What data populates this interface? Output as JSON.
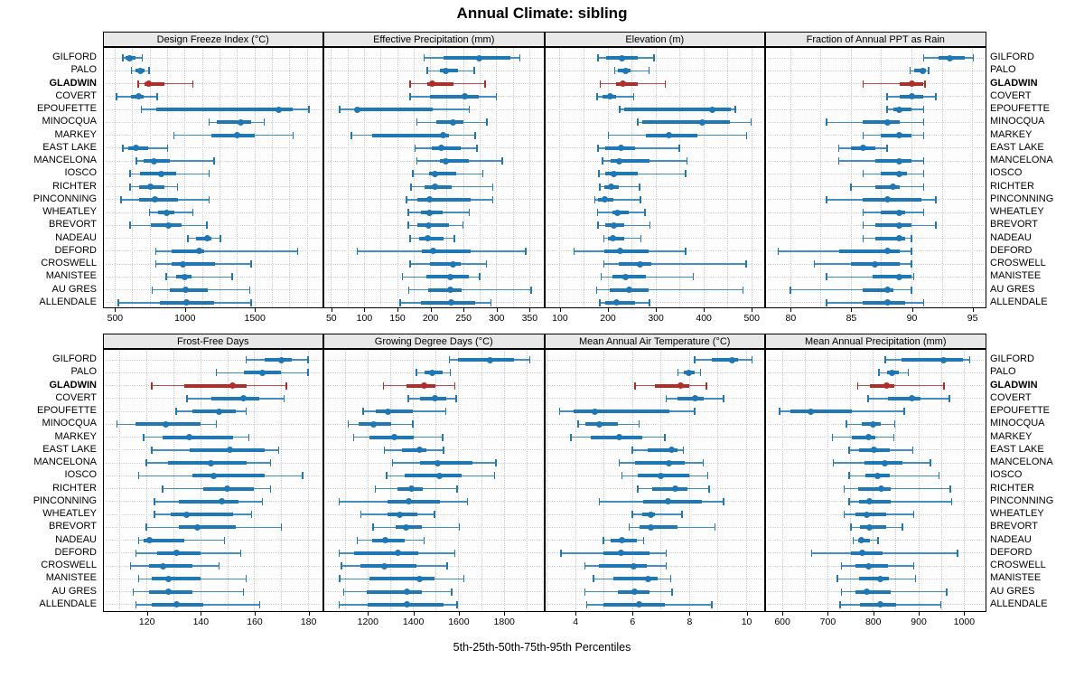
{
  "title": "Annual Climate: sibling",
  "caption": "5th-25th-50th-75th-95th Percentiles",
  "percentile_legend": [
    "5th",
    "25th",
    "50th",
    "75th",
    "95th"
  ],
  "highlight_site": "GLADWIN",
  "colors": {
    "series": "#1F77B4",
    "highlight": "#B22C28",
    "strip_bg": "#E8E8E8",
    "panel_border": "#000000",
    "grid": "#C8C8C8"
  },
  "sites": [
    "GILFORD",
    "PALO",
    "GLADWIN",
    "COVERT",
    "EPOUFETTE",
    "MINOCQUA",
    "MARKEY",
    "EAST LAKE",
    "MANCELONA",
    "IOSCO",
    "RICHTER",
    "PINCONNING",
    "WHEATLEY",
    "BREVORT",
    "NADEAU",
    "DEFORD",
    "CROSWELL",
    "MANISTEE",
    "AU GRES",
    "ALLENDALE"
  ],
  "chart_data": [
    {
      "type": "range-dotplot",
      "title": "Design Freeze Index (°C)",
      "row": 0,
      "col": 0,
      "xlim": [
        420,
        1980
      ],
      "ticks": [
        500,
        1000,
        1500
      ],
      "grid_step": 125,
      "values": [
        [
          558,
          575,
          605,
          650,
          697
        ],
        [
          620,
          650,
          685,
          715,
          745
        ],
        [
          670,
          715,
          745,
          855,
          1060
        ],
        [
          515,
          620,
          670,
          705,
          805
        ],
        [
          690,
          800,
          1670,
          1775,
          1890
        ],
        [
          1175,
          1230,
          1400,
          1475,
          1570
        ],
        [
          925,
          1195,
          1375,
          1500,
          1775
        ],
        [
          560,
          595,
          650,
          740,
          880
        ],
        [
          655,
          705,
          780,
          895,
          1210
        ],
        [
          610,
          680,
          835,
          940,
          1175
        ],
        [
          610,
          675,
          758,
          855,
          950
        ],
        [
          545,
          673,
          790,
          955,
          1175
        ],
        [
          748,
          808,
          870,
          930,
          1058
        ],
        [
          610,
          760,
          883,
          977,
          1160
        ],
        [
          1025,
          1080,
          1165,
          1190,
          1255
        ],
        [
          795,
          910,
          1105,
          1140,
          1810
        ],
        [
          795,
          905,
          990,
          1215,
          1475
        ],
        [
          870,
          940,
          1000,
          1050,
          1340
        ],
        [
          770,
          895,
          1005,
          1165,
          1465
        ],
        [
          525,
          825,
          1015,
          1210,
          1475
        ]
      ]
    },
    {
      "type": "range-dotplot",
      "title": "Effective Precipitation (mm)",
      "row": 0,
      "col": 1,
      "xlim": [
        40,
        370
      ],
      "ticks": [
        50,
        100,
        150,
        200,
        250,
        300,
        350
      ],
      "grid_step": 25,
      "values": [
        [
          191,
          221,
          275,
          321,
          336
        ],
        [
          196,
          215,
          224,
          242,
          267
        ],
        [
          170,
          196,
          203,
          235,
          283
        ],
        [
          170,
          200,
          253,
          274,
          300
        ],
        [
          63,
          86,
          90,
          204,
          259
        ],
        [
          180,
          210,
          235,
          250,
          286
        ],
        [
          81,
          112,
          220,
          229,
          268
        ],
        [
          177,
          203,
          217,
          246,
          271
        ],
        [
          180,
          215,
          224,
          258,
          309
        ],
        [
          174,
          199,
          208,
          240,
          280
        ],
        [
          171,
          191,
          207,
          233,
          295
        ],
        [
          164,
          181,
          199,
          262,
          295
        ],
        [
          167,
          186,
          199,
          219,
          259
        ],
        [
          167,
          181,
          198,
          228,
          250
        ],
        [
          170,
          183,
          197,
          221,
          237
        ],
        [
          90,
          188,
          204,
          262,
          345
        ],
        [
          170,
          200,
          235,
          247,
          285
        ],
        [
          158,
          195,
          231,
          258,
          275
        ],
        [
          168,
          197,
          230,
          248,
          353
        ],
        [
          155,
          186,
          232,
          268,
          292
        ]
      ]
    },
    {
      "type": "range-dotplot",
      "title": "Elevation (m)",
      "row": 0,
      "col": 2,
      "xlim": [
        70,
        525
      ],
      "ticks": [
        100,
        200,
        300,
        400,
        500
      ],
      "grid_step": 50,
      "values": [
        [
          180,
          198,
          230,
          263,
          297
        ],
        [
          215,
          222,
          238,
          248,
          287
        ],
        [
          185,
          218,
          232,
          263,
          321
        ],
        [
          178,
          190,
          205,
          218,
          255
        ],
        [
          225,
          235,
          418,
          457,
          467
        ],
        [
          263,
          273,
          397,
          455,
          500
        ],
        [
          202,
          280,
          329,
          388,
          490
        ],
        [
          180,
          196,
          229,
          258,
          350
        ],
        [
          190,
          207,
          224,
          288,
          366
        ],
        [
          182,
          196,
          213,
          264,
          363
        ],
        [
          184,
          193,
          207,
          224,
          267
        ],
        [
          174,
          180,
          195,
          213,
          269
        ],
        [
          179,
          210,
          221,
          245,
          278
        ],
        [
          180,
          196,
          213,
          235,
          289
        ],
        [
          192,
          201,
          211,
          235,
          270
        ],
        [
          130,
          193,
          226,
          286,
          363
        ],
        [
          192,
          224,
          267,
          292,
          489
        ],
        [
          187,
          211,
          238,
          280,
          379
        ],
        [
          177,
          204,
          245,
          286,
          483
        ],
        [
          184,
          196,
          218,
          258,
          288
        ]
      ]
    },
    {
      "type": "range-dotplot",
      "title": "Fraction of Annual PPT as Rain",
      "row": 0,
      "col": 3,
      "xlim": [
        78,
        96
      ],
      "ticks": [
        80,
        85,
        90,
        95
      ],
      "grid_step": 2.5,
      "values": [
        [
          91,
          92.2,
          93.2,
          94.4,
          95.1
        ],
        [
          89.9,
          90.2,
          90.9,
          91.2,
          91.4
        ],
        [
          86,
          89,
          90,
          91,
          91.1
        ],
        [
          88,
          89,
          90,
          91,
          92
        ],
        [
          88,
          88.5,
          89,
          90,
          91
        ],
        [
          83,
          86,
          88,
          89,
          91
        ],
        [
          86,
          87.5,
          89,
          90,
          91
        ],
        [
          84,
          85,
          86,
          87,
          88
        ],
        [
          84,
          87,
          89,
          90,
          91
        ],
        [
          86,
          87.5,
          89,
          89.6,
          91
        ],
        [
          85,
          87,
          88.5,
          89,
          91
        ],
        [
          83,
          86,
          88,
          90.8,
          92
        ],
        [
          86,
          87.5,
          89,
          89.5,
          91
        ],
        [
          86,
          87,
          89,
          90,
          92
        ],
        [
          86,
          87,
          89,
          89.5,
          90
        ],
        [
          79,
          84,
          88,
          89,
          90
        ],
        [
          82,
          85,
          87,
          89,
          90
        ],
        [
          83,
          86.8,
          89,
          90,
          90.2
        ],
        [
          80,
          86,
          88,
          88.5,
          90
        ],
        [
          83,
          86,
          88,
          89.5,
          91
        ]
      ]
    },
    {
      "type": "range-dotplot",
      "title": "Frost-Free Days",
      "row": 1,
      "col": 0,
      "xlim": [
        104,
        185
      ],
      "ticks": [
        120,
        140,
        160,
        180
      ],
      "grid_step": 10,
      "values": [
        [
          157,
          164,
          170,
          174,
          180
        ],
        [
          146,
          156,
          163,
          170,
          180
        ],
        [
          122,
          134,
          152,
          157,
          172
        ],
        [
          135,
          144,
          156,
          162,
          171
        ],
        [
          131,
          137,
          147,
          153,
          157
        ],
        [
          109,
          116,
          127,
          140,
          146
        ],
        [
          119,
          126,
          136,
          152,
          158
        ],
        [
          122,
          136,
          151,
          164,
          169
        ],
        [
          120,
          128,
          144,
          157,
          166
        ],
        [
          117,
          137,
          145,
          164,
          178
        ],
        [
          126,
          141,
          150,
          160,
          166
        ],
        [
          123,
          132,
          148,
          154,
          163
        ],
        [
          123,
          129,
          135,
          152,
          159
        ],
        [
          120,
          132,
          139,
          153,
          170
        ],
        [
          117,
          119,
          121,
          134,
          149
        ],
        [
          116,
          124,
          131,
          140,
          155
        ],
        [
          114,
          121,
          126,
          137,
          147
        ],
        [
          117,
          122,
          128,
          140,
          157
        ],
        [
          115,
          121,
          128,
          137,
          156
        ],
        [
          116,
          122,
          131,
          141,
          162
        ]
      ]
    },
    {
      "type": "range-dotplot",
      "title": "Growing Degree Days (°C)",
      "row": 1,
      "col": 1,
      "xlim": [
        1010,
        1970
      ],
      "ticks": [
        1200,
        1400,
        1600,
        1800
      ],
      "grid_step": 100,
      "values": [
        [
          1560,
          1600,
          1740,
          1845,
          1915
        ],
        [
          1415,
          1450,
          1485,
          1530,
          1565
        ],
        [
          1270,
          1370,
          1450,
          1500,
          1585
        ],
        [
          1380,
          1430,
          1495,
          1545,
          1590
        ],
        [
          1180,
          1235,
          1290,
          1400,
          1545
        ],
        [
          1115,
          1160,
          1225,
          1305,
          1400
        ],
        [
          1140,
          1210,
          1320,
          1405,
          1530
        ],
        [
          1275,
          1350,
          1430,
          1460,
          1535
        ],
        [
          1310,
          1430,
          1510,
          1660,
          1765
        ],
        [
          1285,
          1365,
          1515,
          1615,
          1760
        ],
        [
          1235,
          1330,
          1395,
          1445,
          1595
        ],
        [
          1075,
          1290,
          1380,
          1520,
          1640
        ],
        [
          1170,
          1290,
          1340,
          1420,
          1495
        ],
        [
          1225,
          1325,
          1370,
          1440,
          1605
        ],
        [
          1155,
          1220,
          1280,
          1365,
          1450
        ],
        [
          1075,
          1140,
          1335,
          1425,
          1585
        ],
        [
          1085,
          1170,
          1275,
          1415,
          1550
        ],
        [
          1077,
          1210,
          1430,
          1495,
          1625
        ],
        [
          1095,
          1195,
          1375,
          1440,
          1570
        ],
        [
          1075,
          1200,
          1375,
          1535,
          1595
        ]
      ]
    },
    {
      "type": "range-dotplot",
      "title": "Mean Annual Air Temperature (°C)",
      "row": 1,
      "col": 2,
      "xlim": [
        2.95,
        10.6
      ],
      "ticks": [
        4,
        6,
        8,
        10
      ],
      "grid_step": 1,
      "values": [
        [
          8.2,
          8.8,
          9.5,
          9.7,
          10.2
        ],
        [
          7.6,
          7.8,
          8.0,
          8.2,
          8.4
        ],
        [
          6.1,
          6.8,
          7.7,
          8.0,
          8.6
        ],
        [
          7.2,
          7.6,
          8.2,
          8.5,
          9.2
        ],
        [
          3.45,
          3.95,
          4.7,
          7.3,
          8.2
        ],
        [
          4.1,
          4.35,
          4.85,
          5.5,
          6.25
        ],
        [
          3.85,
          4.55,
          5.55,
          6.35,
          7.15
        ],
        [
          6.0,
          6.55,
          7.4,
          7.6,
          7.8
        ],
        [
          5.55,
          6.1,
          7.3,
          7.85,
          8.5
        ],
        [
          5.65,
          6.2,
          7.0,
          8.0,
          8.65
        ],
        [
          6.2,
          6.7,
          7.5,
          7.95,
          8.7
        ],
        [
          4.85,
          6.4,
          7.25,
          8.45,
          9.2
        ],
        [
          6.0,
          6.35,
          6.65,
          6.8,
          7.75
        ],
        [
          5.9,
          6.25,
          6.65,
          7.6,
          8.9
        ],
        [
          5.0,
          5.25,
          5.65,
          6.15,
          6.4
        ],
        [
          3.5,
          5.0,
          5.6,
          6.6,
          7.2
        ],
        [
          4.35,
          4.85,
          6.05,
          6.5,
          7.2
        ],
        [
          4.65,
          5.35,
          6.55,
          6.9,
          7.35
        ],
        [
          4.35,
          5.5,
          6.1,
          6.6,
          7.4
        ],
        [
          4.4,
          5.0,
          6.25,
          7.15,
          8.8
        ]
      ]
    },
    {
      "type": "range-dotplot",
      "title": "Mean Annual Precipitation (mm)",
      "row": 1,
      "col": 3,
      "xlim": [
        565,
        1045
      ],
      "ticks": [
        600,
        700,
        800,
        900,
        1000
      ],
      "grid_step": 50,
      "values": [
        [
          827,
          863,
          956,
          999,
          1013
        ],
        [
          813,
          831,
          842,
          857,
          878
        ],
        [
          767,
          793,
          831,
          848,
          957
        ],
        [
          790,
          834,
          886,
          905,
          968
        ],
        [
          595,
          618,
          664,
          754,
          869
        ],
        [
          742,
          775,
          800,
          818,
          848
        ],
        [
          711,
          754,
          790,
          805,
          846
        ],
        [
          748,
          770,
          803,
          837,
          888
        ],
        [
          713,
          782,
          826,
          865,
          927
        ],
        [
          748,
          783,
          811,
          837,
          946
        ],
        [
          737,
          767,
          818,
          840,
          970
        ],
        [
          748,
          770,
          793,
          839,
          973
        ],
        [
          737,
          761,
          787,
          829,
          890
        ],
        [
          752,
          772,
          792,
          829,
          865
        ],
        [
          757,
          767,
          775,
          793,
          811
        ],
        [
          665,
          752,
          776,
          821,
          986
        ],
        [
          731,
          761,
          790,
          834,
          890
        ],
        [
          722,
          770,
          816,
          835,
          894
        ],
        [
          731,
          761,
          787,
          839,
          963
        ],
        [
          728,
          772,
          816,
          852,
          950
        ]
      ]
    }
  ]
}
